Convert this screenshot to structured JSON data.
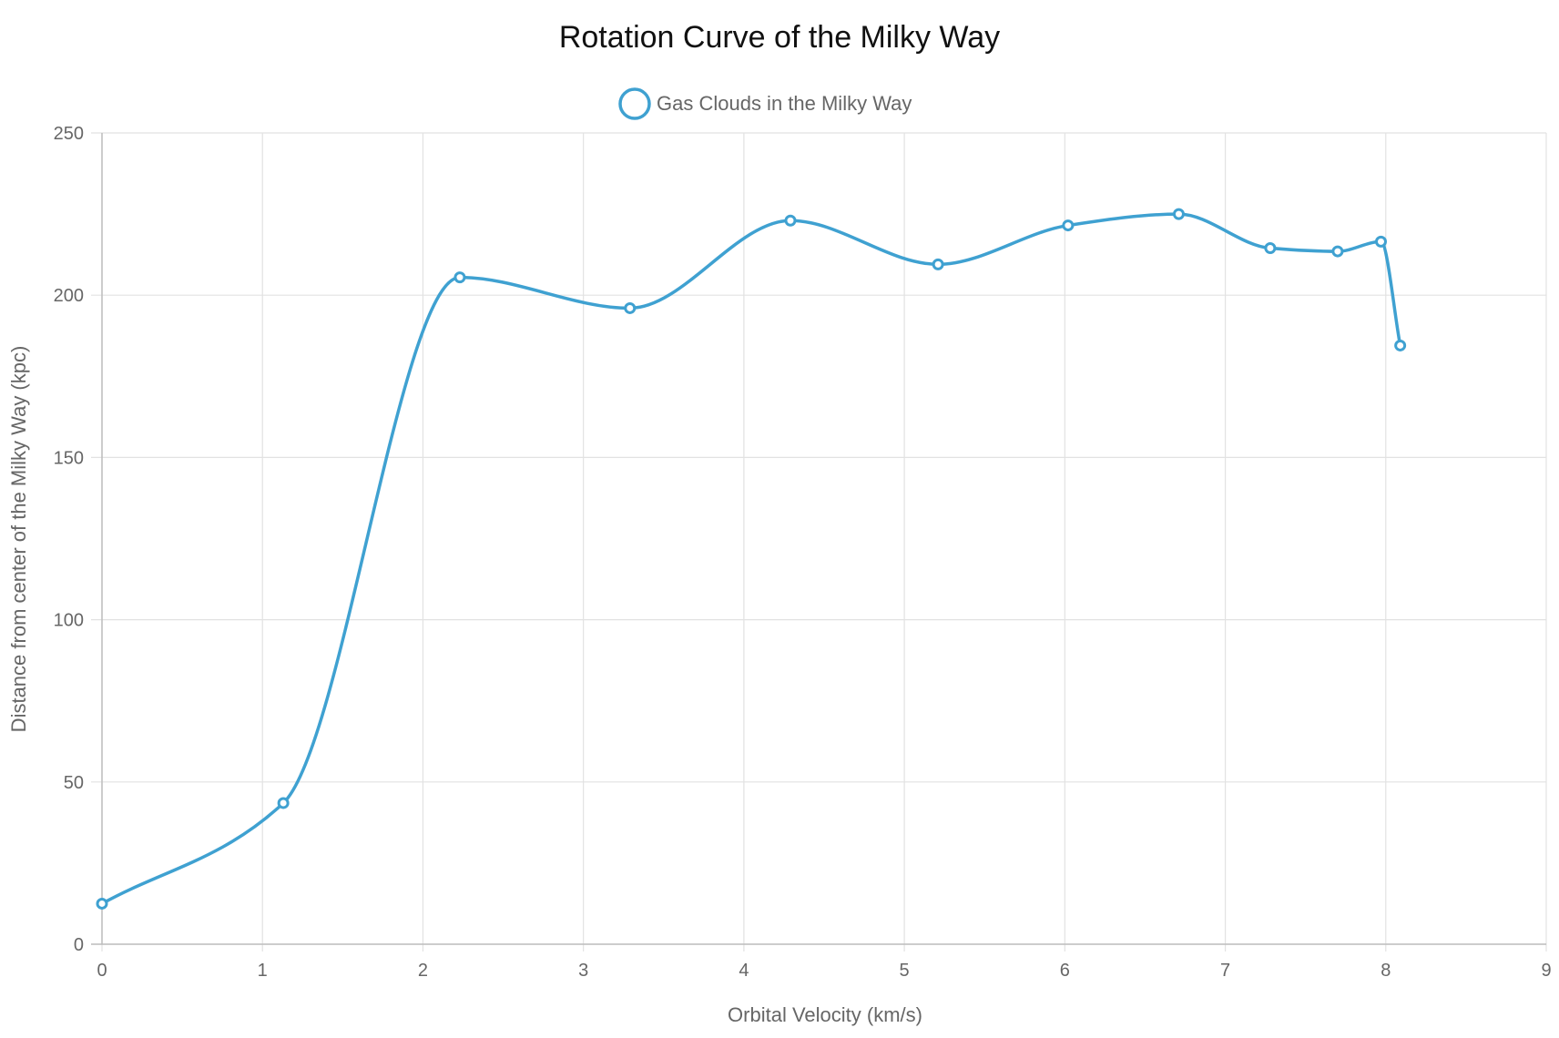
{
  "chart_data": {
    "type": "line",
    "title": "Rotation Curve of the Milky Way",
    "xlabel": "Orbital Velocity (km/s)",
    "ylabel": "Distance from center of the Milky Way (kpc)",
    "xlim": [
      0,
      9
    ],
    "ylim": [
      0,
      250
    ],
    "x_ticks": [
      0,
      1,
      2,
      3,
      4,
      5,
      6,
      7,
      8,
      9
    ],
    "y_ticks": [
      0,
      50,
      100,
      150,
      200,
      250
    ],
    "grid": true,
    "legend_position": "top-center",
    "series": [
      {
        "name": "Gas Clouds in the Milky Way",
        "color": "#3fa1d1",
        "points": [
          {
            "x": 0.0,
            "y": 12.5
          },
          {
            "x": 1.13,
            "y": 43.5
          },
          {
            "x": 2.23,
            "y": 205.5
          },
          {
            "x": 3.29,
            "y": 196
          },
          {
            "x": 4.29,
            "y": 223
          },
          {
            "x": 5.21,
            "y": 209.5
          },
          {
            "x": 6.02,
            "y": 221.5
          },
          {
            "x": 6.71,
            "y": 225
          },
          {
            "x": 7.28,
            "y": 214.5
          },
          {
            "x": 7.7,
            "y": 213.5
          },
          {
            "x": 7.97,
            "y": 216.5
          },
          {
            "x": 8.09,
            "y": 184.5
          }
        ]
      }
    ]
  }
}
